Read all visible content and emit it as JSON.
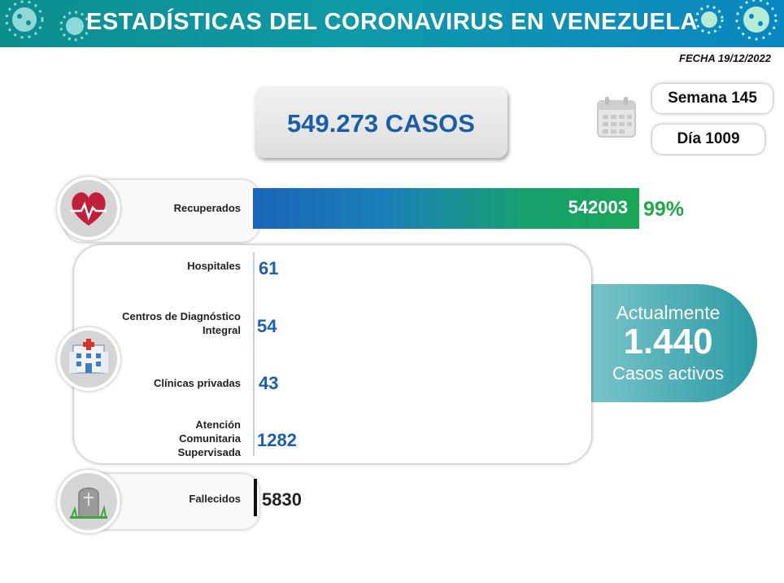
{
  "header": {
    "title": "ESTADÍSTICAS DEL CORONAVIRUS EN VENEZUELA"
  },
  "fecha": "FECHA 19/12/2022",
  "total": {
    "casos": "549.273 CASOS"
  },
  "calendar": {
    "icon": "calendar-icon",
    "semana": "Semana 145",
    "dia": "Día 1009"
  },
  "recuperados": {
    "label": "Recuperados",
    "value": "542003",
    "percent": "99%",
    "icon": "heart-pulse-icon"
  },
  "activos_breakdown": {
    "icon": "hospital-icon",
    "items": [
      {
        "label": "Hospitales",
        "value": "61"
      },
      {
        "label": "Centros de Diagnóstico Integral",
        "value": "54"
      },
      {
        "label": "Clínicas privadas",
        "value": "43"
      },
      {
        "label": "Atención Comunitaria Supervisada",
        "value": "1282"
      }
    ]
  },
  "activos": {
    "line1": "Actualmente",
    "value": "1.440",
    "line2": "Casos activos"
  },
  "fallecidos": {
    "label": "Fallecidos",
    "value": "5830",
    "icon": "tombstone-icon"
  },
  "colors": {
    "header": "#0f9aa8",
    "accent_blue": "#1b5fae",
    "accent_green": "#21a947",
    "activos_teal": "#2a9aa4"
  }
}
